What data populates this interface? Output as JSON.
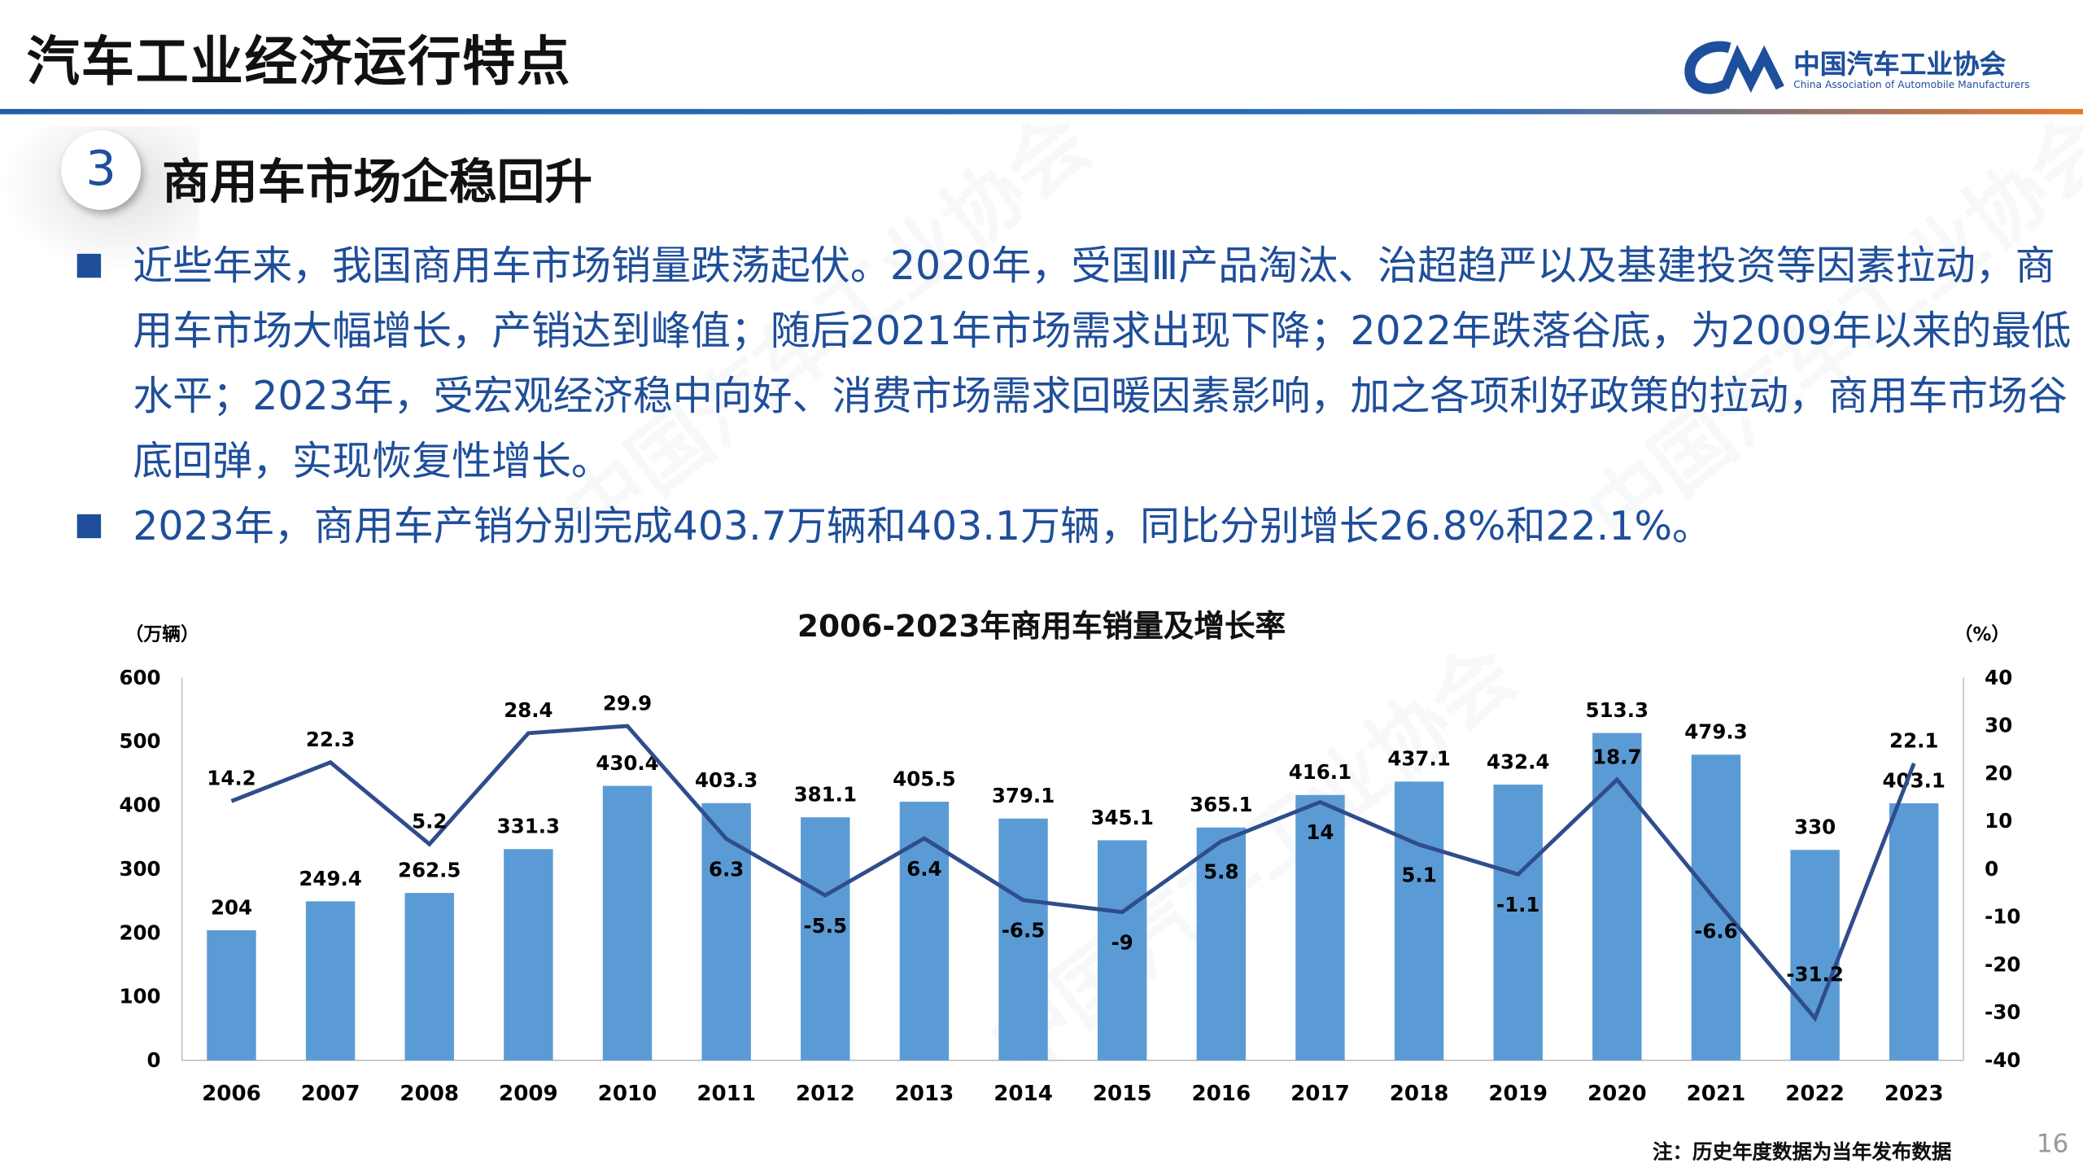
{
  "header": {
    "title": "汽车工业经济运行特点"
  },
  "logo": {
    "cn": "中国汽车工业协会",
    "en": "China Association of Automobile Manufacturers",
    "mark": "CAAM"
  },
  "section": {
    "number": "3",
    "title": "商用车市场企稳回升"
  },
  "bullets": [
    "近些年来，我国商用车市场销量跌荡起伏。2020年，受国Ⅲ产品淘汰、治超趋严以及基建投资等因素拉动，商用车市场大幅增长，产销达到峰值；随后2021年市场需求出现下降；2022年跌落谷底，为2009年以来的最低水平；2023年，受宏观经济稳中向好、消费市场需求回暖因素影响，加之各项利好政策的拉动，商用车市场谷底回弹，实现恢复性增长。",
    "2023年，商用车产销分别完成403.7万辆和403.1万辆，同比分别增长26.8%和22.1%。"
  ],
  "chart_data": {
    "type": "bar+line",
    "title": "2006-2023年商用车销量及增长率",
    "ylabel_left": "（万辆）",
    "ylabel_right": "（%）",
    "categories": [
      "2006",
      "2007",
      "2008",
      "2009",
      "2010",
      "2011",
      "2012",
      "2013",
      "2014",
      "2015",
      "2016",
      "2017",
      "2018",
      "2019",
      "2020",
      "2021",
      "2022",
      "2023"
    ],
    "series": [
      {
        "type": "bar",
        "axis": "left",
        "values": [
          204,
          249.4,
          262.5,
          331.3,
          430.4,
          403.3,
          381.1,
          405.5,
          379.1,
          345.1,
          365.1,
          416.1,
          437.1,
          432.4,
          513.3,
          479.3,
          330,
          403.1
        ]
      },
      {
        "type": "line",
        "axis": "right",
        "values": [
          14.2,
          22.3,
          5.2,
          28.4,
          29.9,
          6.3,
          -5.5,
          6.4,
          -6.5,
          -9,
          5.8,
          14,
          5.1,
          -1.1,
          18.7,
          -6.6,
          -31.2,
          22.1
        ]
      }
    ],
    "ylim_left": [
      0,
      600
    ],
    "yticks_left": [
      0,
      100,
      200,
      300,
      400,
      500,
      600
    ],
    "ylim_right": [
      -40,
      40
    ],
    "yticks_right": [
      -40,
      -30,
      -20,
      -10,
      0,
      10,
      20,
      30,
      40
    ],
    "grid": false,
    "colors": {
      "bar": "#5b9bd5",
      "line": "#2f4d8c"
    }
  },
  "footer": {
    "note": "注：历史年度数据为当年发布数据",
    "page": "16"
  }
}
